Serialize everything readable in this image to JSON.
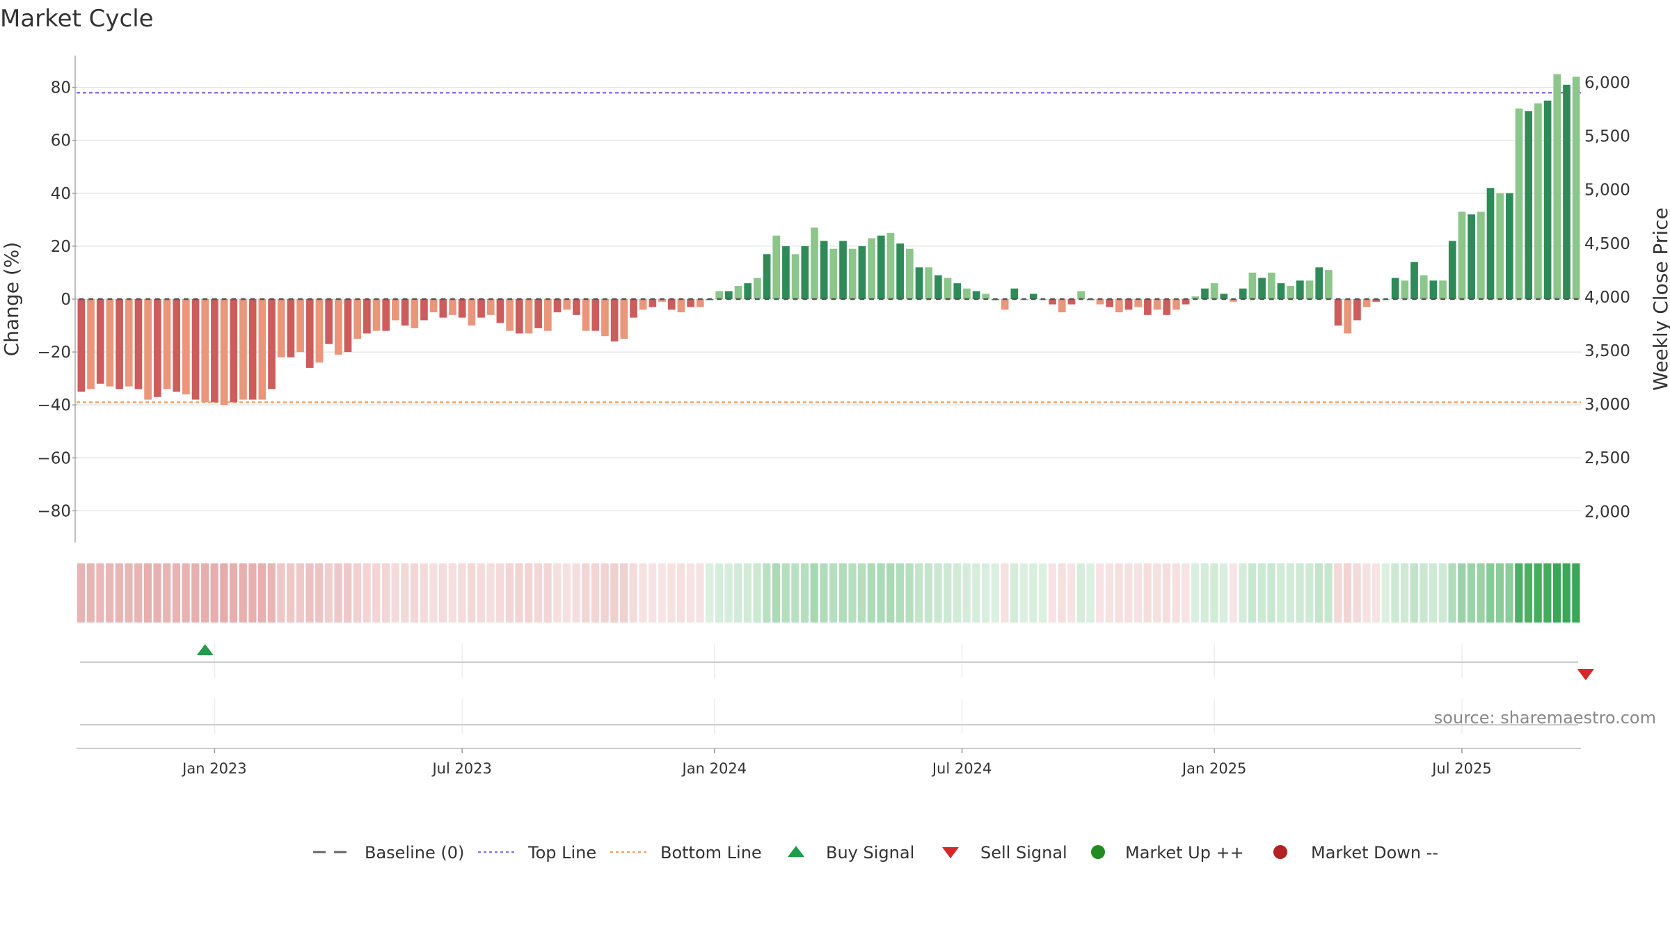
{
  "chart_data": {
    "type": "bar",
    "title": "Market Cycle",
    "ylabel_left": "Change (%)",
    "ylabel_right": "Weekly Close Price",
    "ylim_left": [
      -92,
      92
    ],
    "left_ticks": [
      {
        "value": 80,
        "label": "80"
      },
      {
        "value": 60,
        "label": "60"
      },
      {
        "value": 40,
        "label": "40"
      },
      {
        "value": 20,
        "label": "20"
      },
      {
        "value": 0,
        "label": "0"
      },
      {
        "value": -20,
        "label": "−20"
      },
      {
        "value": -40,
        "label": "−40"
      },
      {
        "value": -60,
        "label": "−60"
      },
      {
        "value": -80,
        "label": "−80"
      }
    ],
    "right_ticks": [
      {
        "value": 6000,
        "label": "6,000"
      },
      {
        "value": 5500,
        "label": "5,500"
      },
      {
        "value": 5000,
        "label": "5,000"
      },
      {
        "value": 4500,
        "label": "4,500"
      },
      {
        "value": 4000,
        "label": "4,000"
      },
      {
        "value": 3500,
        "label": "3,500"
      },
      {
        "value": 3000,
        "label": "3,000"
      },
      {
        "value": 2500,
        "label": "2,500"
      },
      {
        "value": 2000,
        "label": "2,000"
      }
    ],
    "right_ylim": [
      1710,
      6250
    ],
    "top_line": 78,
    "bottom_line": -39,
    "values": [
      -35,
      -34,
      -32,
      -33,
      -34,
      -33,
      -34,
      -38,
      -37,
      -34,
      -35,
      -36,
      -38,
      -39,
      -39,
      -40,
      -39,
      -38,
      -38,
      -38,
      -34,
      -22,
      -22,
      -20,
      -26,
      -24,
      -17,
      -21,
      -20,
      -15,
      -13,
      -12,
      -12,
      -8,
      -10,
      -11,
      -8,
      -5,
      -7,
      -6,
      -7,
      -10,
      -7,
      -6,
      -9,
      -12,
      -13,
      -13,
      -11,
      -12,
      -5,
      -4,
      -6,
      -12,
      -12,
      -14,
      -16,
      -15,
      -7,
      -4,
      -3,
      -1,
      -4,
      -5,
      -3,
      -3,
      0,
      3,
      3,
      5,
      6,
      8,
      17,
      24,
      20,
      17,
      20,
      27,
      22,
      19,
      22,
      19,
      20,
      23,
      24,
      25,
      21,
      19,
      12,
      12,
      9,
      8,
      6,
      4,
      3,
      2,
      0,
      -4,
      4,
      0,
      2,
      0,
      -2,
      -5,
      -2,
      3,
      0,
      -2,
      -3,
      -5,
      -4,
      -3,
      -6,
      -4,
      -6,
      -4,
      -2,
      1,
      4,
      6,
      2,
      -1,
      4,
      10,
      8,
      10,
      6,
      5,
      7,
      7,
      12,
      11,
      -10,
      -13,
      -8,
      -3,
      -1,
      0,
      8,
      7,
      14,
      9,
      7,
      7,
      22,
      33,
      32,
      33,
      42,
      40,
      40,
      72,
      71,
      74,
      75,
      85,
      81,
      84
    ],
    "buy_signal_index": 13,
    "sell_signal_index": 158,
    "x_ticks": [
      {
        "index": 14,
        "label": "Jan 2023"
      },
      {
        "index": 40,
        "label": "Jul 2023"
      },
      {
        "index": 66.5,
        "label": "Jan 2024"
      },
      {
        "index": 92.5,
        "label": "Jul 2024"
      },
      {
        "index": 119,
        "label": "Jan 2025"
      },
      {
        "index": 145,
        "label": "Jul 2025"
      }
    ],
    "legend": [
      {
        "label": "Baseline (0)",
        "symbol": "dash"
      },
      {
        "label": "Top Line",
        "symbol": "dot-purple"
      },
      {
        "label": "Bottom Line",
        "symbol": "dot-orange"
      },
      {
        "label": "Buy Signal",
        "symbol": "triangle-up"
      },
      {
        "label": "Sell Signal",
        "symbol": "triangle-down"
      },
      {
        "label": "Market Up ++",
        "symbol": "circle-green"
      },
      {
        "label": "Market Down --",
        "symbol": "circle-red"
      }
    ],
    "source": "source: sharemaestro.com",
    "colors": {
      "up_dark": "#2e8b57",
      "up_light": "#8cc68a",
      "down_dark": "#cd5c5c",
      "down_light": "#e9967a",
      "top_line": "#9370db",
      "bottom_line": "#f4a460",
      "buy": "#1f9e4a",
      "sell": "#d62728",
      "market_up": "#228b22",
      "market_down": "#b22222",
      "grid": "#e6e6e6"
    }
  }
}
